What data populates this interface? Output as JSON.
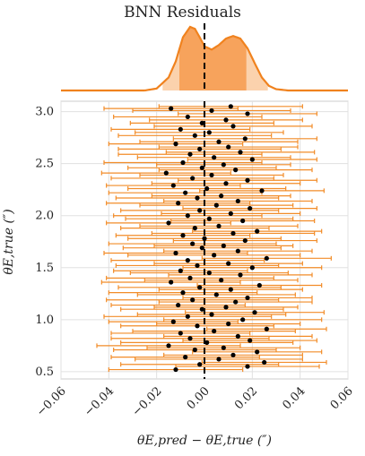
{
  "chart_data": {
    "type": "scatter",
    "title": "BNN Residuals",
    "xlabel": "θE,pred − θE,true (″)",
    "ylabel": "θE,true (″)",
    "xlim": [
      -0.06,
      0.06
    ],
    "ylim": [
      0.43,
      3.1
    ],
    "grid": true,
    "x_ticks": [
      "−0.06",
      "−0.04",
      "−0.02",
      "0.00",
      "0.02",
      "0.04",
      "0.06"
    ],
    "y_ticks": [
      "0.5",
      "1.0",
      "1.5",
      "2.0",
      "2.5",
      "3.0"
    ],
    "reference_line_x": 0.0,
    "colors": {
      "errorbar": "#f28c28",
      "points": "#000000",
      "kde_line": "#f0821e",
      "kde_fill": "#f7a35c",
      "kde_fill_light": "#fbd2ad",
      "grid": "#e0e0e0"
    },
    "marginal_kde": {
      "x": [
        -0.025,
        -0.02,
        -0.015,
        -0.012,
        -0.009,
        -0.006,
        -0.004,
        -0.002,
        0.0,
        0.003,
        0.006,
        0.009,
        0.012,
        0.015,
        0.018,
        0.021,
        0.024,
        0.027,
        0.03,
        0.035
      ],
      "density": [
        0.0,
        0.03,
        0.2,
        0.45,
        0.82,
        0.98,
        0.95,
        0.82,
        0.68,
        0.63,
        0.7,
        0.8,
        0.84,
        0.8,
        0.65,
        0.42,
        0.2,
        0.07,
        0.02,
        0.0
      ],
      "band_outer": [
        -0.0175,
        0.0265
      ],
      "band_inner": [
        -0.0105,
        0.0175
      ]
    },
    "points": [
      {
        "x": -0.012,
        "y": 0.52,
        "err": 0.028
      },
      {
        "x": 0.018,
        "y": 0.55,
        "err": 0.03
      },
      {
        "x": -0.002,
        "y": 0.57,
        "err": 0.033
      },
      {
        "x": 0.025,
        "y": 0.59,
        "err": 0.026
      },
      {
        "x": 0.006,
        "y": 0.62,
        "err": 0.035
      },
      {
        "x": -0.008,
        "y": 0.64,
        "err": 0.031
      },
      {
        "x": 0.012,
        "y": 0.66,
        "err": 0.029
      },
      {
        "x": 0.022,
        "y": 0.69,
        "err": 0.027
      },
      {
        "x": -0.004,
        "y": 0.71,
        "err": 0.034
      },
      {
        "x": 0.008,
        "y": 0.73,
        "err": 0.032
      },
      {
        "x": -0.015,
        "y": 0.75,
        "err": 0.03
      },
      {
        "x": 0.001,
        "y": 0.78,
        "err": 0.036
      },
      {
        "x": 0.019,
        "y": 0.8,
        "err": 0.028
      },
      {
        "x": -0.006,
        "y": 0.82,
        "err": 0.033
      },
      {
        "x": 0.014,
        "y": 0.84,
        "err": 0.031
      },
      {
        "x": -0.01,
        "y": 0.87,
        "err": 0.029
      },
      {
        "x": 0.004,
        "y": 0.89,
        "err": 0.034
      },
      {
        "x": 0.026,
        "y": 0.91,
        "err": 0.025
      },
      {
        "x": -0.003,
        "y": 0.94,
        "err": 0.032
      },
      {
        "x": 0.01,
        "y": 0.96,
        "err": 0.03
      },
      {
        "x": -0.013,
        "y": 0.98,
        "err": 0.027
      },
      {
        "x": 0.016,
        "y": 1.0,
        "err": 0.033
      },
      {
        "x": -0.007,
        "y": 1.03,
        "err": 0.035
      },
      {
        "x": 0.003,
        "y": 1.05,
        "err": 0.031
      },
      {
        "x": 0.021,
        "y": 1.07,
        "err": 0.029
      },
      {
        "x": -0.001,
        "y": 1.1,
        "err": 0.034
      },
      {
        "x": 0.009,
        "y": 1.12,
        "err": 0.03
      },
      {
        "x": -0.011,
        "y": 1.14,
        "err": 0.028
      },
      {
        "x": 0.013,
        "y": 1.17,
        "err": 0.032
      },
      {
        "x": -0.005,
        "y": 1.19,
        "err": 0.036
      },
      {
        "x": 0.018,
        "y": 1.21,
        "err": 0.027
      },
      {
        "x": 0.005,
        "y": 1.24,
        "err": 0.033
      },
      {
        "x": -0.009,
        "y": 1.26,
        "err": 0.031
      },
      {
        "x": 0.011,
        "y": 1.29,
        "err": 0.03
      },
      {
        "x": -0.002,
        "y": 1.31,
        "err": 0.034
      },
      {
        "x": 0.023,
        "y": 1.33,
        "err": 0.026
      },
      {
        "x": -0.014,
        "y": 1.36,
        "err": 0.029
      },
      {
        "x": 0.007,
        "y": 1.38,
        "err": 0.032
      },
      {
        "x": -0.006,
        "y": 1.4,
        "err": 0.035
      },
      {
        "x": 0.015,
        "y": 1.43,
        "err": 0.03
      },
      {
        "x": 0.002,
        "y": 1.45,
        "err": 0.033
      },
      {
        "x": -0.01,
        "y": 1.47,
        "err": 0.028
      },
      {
        "x": 0.02,
        "y": 1.5,
        "err": 0.029
      },
      {
        "x": -0.003,
        "y": 1.52,
        "err": 0.034
      },
      {
        "x": 0.01,
        "y": 1.54,
        "err": 0.031
      },
      {
        "x": -0.007,
        "y": 1.57,
        "err": 0.032
      },
      {
        "x": 0.026,
        "y": 1.59,
        "err": 0.027
      },
      {
        "x": 0.004,
        "y": 1.62,
        "err": 0.036
      },
      {
        "x": -0.012,
        "y": 1.64,
        "err": 0.03
      },
      {
        "x": 0.014,
        "y": 1.66,
        "err": 0.031
      },
      {
        "x": -0.001,
        "y": 1.69,
        "err": 0.033
      },
      {
        "x": 0.008,
        "y": 1.71,
        "err": 0.029
      },
      {
        "x": -0.005,
        "y": 1.73,
        "err": 0.035
      },
      {
        "x": 0.017,
        "y": 1.76,
        "err": 0.03
      },
      {
        "x": 0.0,
        "y": 1.78,
        "err": 0.032
      },
      {
        "x": -0.009,
        "y": 1.81,
        "err": 0.028
      },
      {
        "x": 0.012,
        "y": 1.83,
        "err": 0.034
      },
      {
        "x": 0.022,
        "y": 1.85,
        "err": 0.027
      },
      {
        "x": -0.004,
        "y": 1.88,
        "err": 0.031
      },
      {
        "x": 0.006,
        "y": 1.9,
        "err": 0.033
      },
      {
        "x": -0.015,
        "y": 1.93,
        "err": 0.026
      },
      {
        "x": 0.016,
        "y": 1.95,
        "err": 0.03
      },
      {
        "x": 0.002,
        "y": 1.97,
        "err": 0.035
      },
      {
        "x": -0.007,
        "y": 2.0,
        "err": 0.031
      },
      {
        "x": 0.011,
        "y": 2.02,
        "err": 0.029
      },
      {
        "x": -0.002,
        "y": 2.05,
        "err": 0.033
      },
      {
        "x": 0.019,
        "y": 2.07,
        "err": 0.028
      },
      {
        "x": 0.005,
        "y": 2.1,
        "err": 0.032
      },
      {
        "x": -0.011,
        "y": 2.12,
        "err": 0.03
      },
      {
        "x": 0.014,
        "y": 2.14,
        "err": 0.031
      },
      {
        "x": -0.003,
        "y": 2.17,
        "err": 0.034
      },
      {
        "x": 0.007,
        "y": 2.19,
        "err": 0.029
      },
      {
        "x": -0.008,
        "y": 2.22,
        "err": 0.032
      },
      {
        "x": 0.024,
        "y": 2.24,
        "err": 0.026
      },
      {
        "x": 0.001,
        "y": 2.26,
        "err": 0.033
      },
      {
        "x": -0.013,
        "y": 2.29,
        "err": 0.028
      },
      {
        "x": 0.009,
        "y": 2.31,
        "err": 0.031
      },
      {
        "x": 0.018,
        "y": 2.34,
        "err": 0.029
      },
      {
        "x": -0.005,
        "y": 2.36,
        "err": 0.034
      },
      {
        "x": 0.003,
        "y": 2.39,
        "err": 0.03
      },
      {
        "x": -0.016,
        "y": 2.41,
        "err": 0.027
      },
      {
        "x": 0.013,
        "y": 2.44,
        "err": 0.032
      },
      {
        "x": -0.001,
        "y": 2.46,
        "err": 0.031
      },
      {
        "x": 0.008,
        "y": 2.49,
        "err": 0.028
      },
      {
        "x": -0.009,
        "y": 2.51,
        "err": 0.033
      },
      {
        "x": 0.02,
        "y": 2.54,
        "err": 0.027
      },
      {
        "x": 0.004,
        "y": 2.56,
        "err": 0.032
      },
      {
        "x": -0.006,
        "y": 2.59,
        "err": 0.03
      },
      {
        "x": 0.015,
        "y": 2.61,
        "err": 0.031
      },
      {
        "x": -0.002,
        "y": 2.64,
        "err": 0.034
      },
      {
        "x": 0.01,
        "y": 2.66,
        "err": 0.029
      },
      {
        "x": -0.012,
        "y": 2.69,
        "err": 0.028
      },
      {
        "x": 0.006,
        "y": 2.71,
        "err": 0.033
      },
      {
        "x": 0.017,
        "y": 2.74,
        "err": 0.03
      },
      {
        "x": -0.004,
        "y": 2.77,
        "err": 0.032
      },
      {
        "x": 0.002,
        "y": 2.8,
        "err": 0.031
      },
      {
        "x": -0.01,
        "y": 2.83,
        "err": 0.029
      },
      {
        "x": 0.012,
        "y": 2.86,
        "err": 0.033
      },
      {
        "x": -0.001,
        "y": 2.89,
        "err": 0.03
      },
      {
        "x": 0.009,
        "y": 2.92,
        "err": 0.032
      },
      {
        "x": -0.007,
        "y": 2.95,
        "err": 0.031
      },
      {
        "x": 0.018,
        "y": 2.98,
        "err": 0.029
      },
      {
        "x": 0.003,
        "y": 3.01,
        "err": 0.033
      },
      {
        "x": -0.014,
        "y": 3.03,
        "err": 0.028
      },
      {
        "x": 0.011,
        "y": 3.05,
        "err": 0.03
      }
    ]
  }
}
